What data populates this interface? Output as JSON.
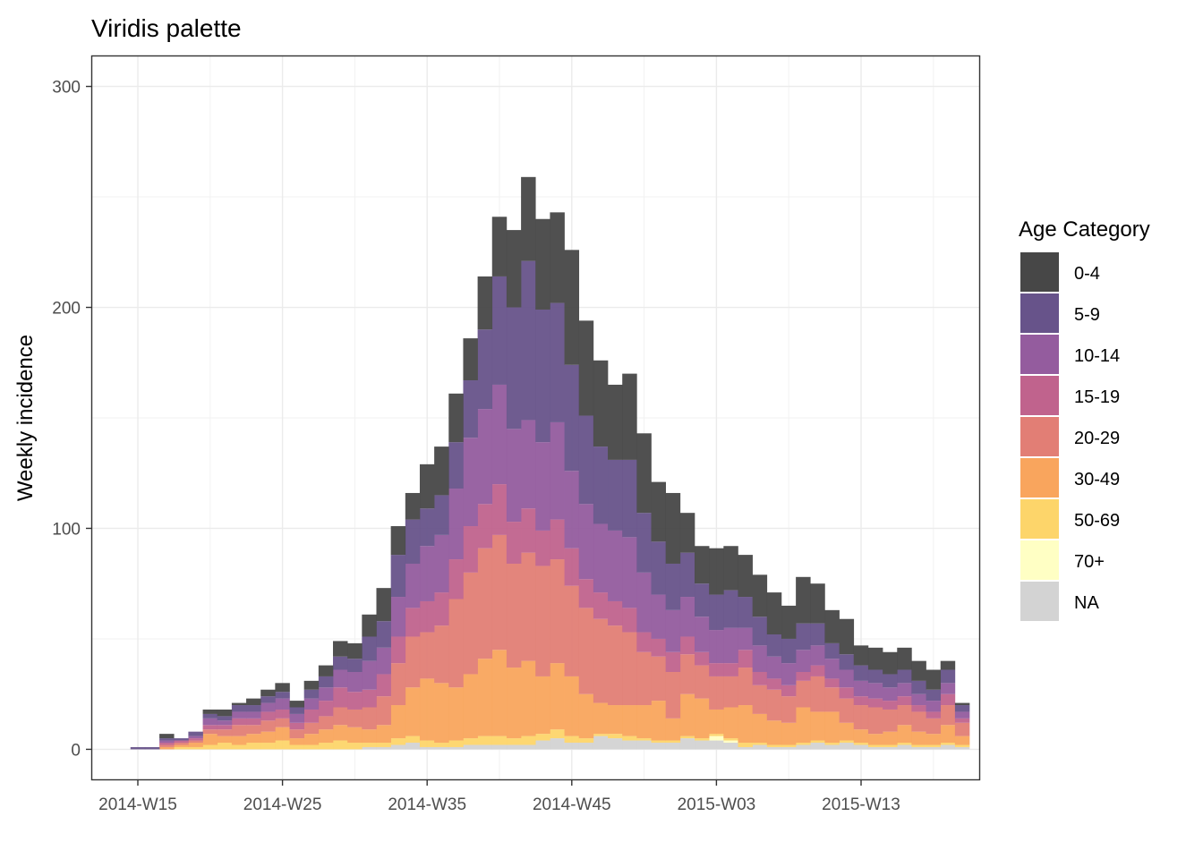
{
  "chart_data": {
    "type": "bar",
    "stacked": true,
    "title": "Viridis palette",
    "xlabel": "",
    "ylabel": "Weekly incidence",
    "ylim": [
      -14,
      314
    ],
    "yticks": [
      0,
      100,
      200,
      300
    ],
    "xticks": [
      "2014-W15",
      "2014-W25",
      "2014-W35",
      "2014-W45",
      "2015-W03",
      "2015-W13"
    ],
    "xtick_index": [
      0,
      10,
      20,
      30,
      40,
      50
    ],
    "grid": true,
    "legend": {
      "title": "Age Category",
      "position": "right"
    },
    "categories": [
      "2014-W15",
      "2014-W16",
      "2014-W17",
      "2014-W18",
      "2014-W19",
      "2014-W20",
      "2014-W21",
      "2014-W22",
      "2014-W23",
      "2014-W24",
      "2014-W25",
      "2014-W26",
      "2014-W27",
      "2014-W28",
      "2014-W29",
      "2014-W30",
      "2014-W31",
      "2014-W32",
      "2014-W33",
      "2014-W34",
      "2014-W35",
      "2014-W36",
      "2014-W37",
      "2014-W38",
      "2014-W39",
      "2014-W40",
      "2014-W41",
      "2014-W42",
      "2014-W43",
      "2014-W44",
      "2014-W45",
      "2014-W46",
      "2014-W47",
      "2014-W48",
      "2014-W49",
      "2014-W50",
      "2014-W51",
      "2014-W52",
      "2015-W01",
      "2015-W02",
      "2015-W03",
      "2015-W04",
      "2015-W05",
      "2015-W06",
      "2015-W07",
      "2015-W08",
      "2015-W09",
      "2015-W10",
      "2015-W11",
      "2015-W12",
      "2015-W13",
      "2015-W14",
      "2015-W15",
      "2015-W16",
      "2015-W17",
      "2015-W18",
      "2015-W19",
      "2015-W20"
    ],
    "series": [
      {
        "name": "NA",
        "color": "#D3D3D3",
        "values": [
          0,
          0,
          0,
          0,
          0,
          0,
          0,
          0,
          0,
          0,
          0,
          0,
          0,
          0,
          0,
          0,
          1,
          1,
          2,
          3,
          1,
          1,
          1,
          2,
          2,
          2,
          2,
          2,
          4,
          5,
          3,
          3,
          6,
          5,
          4,
          4,
          3,
          3,
          5,
          4,
          4,
          3,
          1,
          2,
          1,
          1,
          2,
          3,
          2,
          3,
          2,
          1,
          1,
          2,
          1,
          1,
          2,
          1
        ]
      },
      {
        "name": "70+",
        "color": "#FFFFC4",
        "values": [
          0,
          0,
          0,
          0,
          0,
          0,
          0,
          0,
          0,
          0,
          0,
          0,
          0,
          0,
          0,
          0,
          0,
          0,
          0,
          0,
          0,
          0,
          0,
          0,
          0,
          0,
          0,
          0,
          0,
          0,
          0,
          0,
          0,
          0,
          0,
          0,
          0,
          0,
          0,
          0,
          2,
          1,
          0,
          0,
          0,
          0,
          0,
          0,
          0,
          0,
          0,
          0,
          0,
          0,
          0,
          0,
          0,
          0
        ]
      },
      {
        "name": "50-69",
        "color": "#FDD56A",
        "values": [
          0,
          0,
          0,
          1,
          1,
          2,
          3,
          2,
          3,
          3,
          4,
          2,
          2,
          3,
          4,
          3,
          2,
          2,
          3,
          3,
          3,
          2,
          3,
          3,
          4,
          4,
          3,
          4,
          3,
          4,
          3,
          2,
          1,
          2,
          2,
          1,
          1,
          1,
          1,
          1,
          1,
          1,
          2,
          1,
          1,
          1,
          1,
          1,
          1,
          1,
          1,
          1,
          1,
          1,
          1,
          1,
          1,
          1
        ]
      },
      {
        "name": "30-49",
        "color": "#F9A55D",
        "values": [
          0,
          0,
          1,
          1,
          2,
          5,
          3,
          4,
          4,
          5,
          6,
          3,
          5,
          6,
          7,
          7,
          6,
          8,
          15,
          22,
          28,
          27,
          24,
          29,
          35,
          39,
          32,
          34,
          26,
          30,
          27,
          20,
          14,
          13,
          14,
          15,
          18,
          10,
          19,
          18,
          11,
          14,
          17,
          13,
          11,
          10,
          16,
          13,
          14,
          8,
          6,
          5,
          6,
          8,
          6,
          5,
          8,
          4
        ]
      },
      {
        "name": "20-29",
        "color": "#E27E75",
        "values": [
          0,
          0,
          1,
          1,
          1,
          2,
          3,
          5,
          4,
          5,
          4,
          4,
          5,
          6,
          8,
          8,
          10,
          13,
          19,
          23,
          21,
          26,
          40,
          46,
          50,
          52,
          47,
          49,
          50,
          47,
          41,
          39,
          38,
          36,
          33,
          24,
          20,
          21,
          18,
          15,
          15,
          14,
          17,
          13,
          14,
          12,
          12,
          16,
          11,
          11,
          11,
          12,
          10,
          9,
          9,
          7,
          9,
          6
        ]
      },
      {
        "name": "15-19",
        "color": "#C0638D",
        "values": [
          0,
          0,
          1,
          1,
          1,
          2,
          2,
          3,
          3,
          4,
          4,
          3,
          6,
          7,
          9,
          8,
          8,
          10,
          12,
          13,
          14,
          15,
          18,
          21,
          20,
          23,
          19,
          20,
          16,
          18,
          17,
          13,
          12,
          11,
          11,
          9,
          8,
          9,
          8,
          6,
          6,
          6,
          8,
          6,
          5,
          5,
          4,
          5,
          4,
          5,
          4,
          4,
          4,
          4,
          3,
          3,
          5,
          2
        ]
      },
      {
        "name": "10-14",
        "color": "#945C9E",
        "values": [
          0,
          0,
          1,
          0,
          1,
          3,
          2,
          3,
          3,
          4,
          5,
          4,
          5,
          6,
          8,
          9,
          13,
          12,
          18,
          20,
          25,
          26,
          32,
          40,
          43,
          45,
          42,
          40,
          40,
          44,
          35,
          34,
          31,
          32,
          32,
          27,
          20,
          19,
          18,
          16,
          15,
          16,
          10,
          12,
          10,
          10,
          10,
          9,
          9,
          8,
          7,
          7,
          6,
          6,
          5,
          5,
          5,
          3
        ]
      },
      {
        "name": "5-9",
        "color": "#67538A",
        "values": [
          1,
          1,
          1,
          1,
          2,
          2,
          2,
          3,
          3,
          3,
          3,
          3,
          4,
          5,
          6,
          6,
          11,
          12,
          19,
          20,
          17,
          18,
          21,
          26,
          36,
          49,
          55,
          72,
          60,
          54,
          48,
          40,
          35,
          32,
          35,
          27,
          24,
          21,
          20,
          15,
          16,
          17,
          14,
          13,
          10,
          11,
          12,
          10,
          7,
          7,
          7,
          6,
          6,
          6,
          6,
          5,
          6,
          3
        ]
      },
      {
        "name": "0-4",
        "color": "#474747",
        "values": [
          0,
          0,
          2,
          0,
          0,
          2,
          3,
          1,
          3,
          3,
          4,
          3,
          4,
          5,
          7,
          7,
          10,
          15,
          13,
          12,
          20,
          22,
          22,
          19,
          24,
          27,
          35,
          38,
          41,
          41,
          52,
          43,
          39,
          34,
          39,
          36,
          27,
          32,
          18,
          17,
          21,
          20,
          19,
          19,
          19,
          15,
          21,
          18,
          15,
          16,
          9,
          10,
          10,
          10,
          9,
          9,
          4,
          1
        ]
      }
    ]
  }
}
